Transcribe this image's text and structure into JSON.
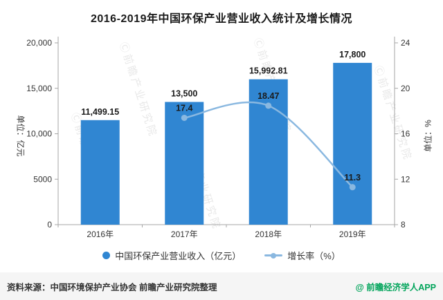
{
  "title": "2016-2019年中国环保产业营业收入统计及增长情况",
  "watermark": "Ⓒ前瞻产业研究院",
  "footer": {
    "source": "资料来源：中国环境保护产业协会 前瞻产业研究院整理",
    "credit": "@ 前瞻经济学人APP"
  },
  "colors": {
    "bar": "#3086d2",
    "line": "#8ab8e0",
    "credit_green": "#00a45a",
    "axis": "#a6a6a6",
    "label_text": "#1a1a1a"
  },
  "chart_data": {
    "type": "bar",
    "combo": "bar+line",
    "categories": [
      "2016年",
      "2017年",
      "2018年",
      "2019年"
    ],
    "series": [
      {
        "name": "中国环保产业营业收入（亿元）",
        "type": "bar",
        "axis": "left",
        "values": [
          11499.15,
          13500,
          15992.81,
          17800
        ],
        "value_labels": [
          "11,499.15",
          "13,500",
          "15,992.81",
          "17,800"
        ]
      },
      {
        "name": "增长率（%）",
        "type": "line",
        "axis": "right",
        "values": [
          null,
          17.4,
          18.47,
          11.3
        ],
        "value_labels": [
          null,
          "17.4",
          "18.47",
          "11.3"
        ]
      }
    ],
    "left_axis": {
      "title": "单位：亿元",
      "min": 0,
      "max": 20000,
      "ticks": [
        0,
        5000,
        10000,
        15000,
        20000
      ],
      "tick_labels": [
        "0",
        "5000",
        "10,000",
        "15,000",
        "20,000"
      ]
    },
    "right_axis": {
      "title": "单位：%",
      "min": 8,
      "max": 24,
      "ticks": [
        8,
        12,
        16,
        20,
        24
      ],
      "tick_labels": [
        "8",
        "12",
        "16",
        "20",
        "24"
      ]
    },
    "grid": false,
    "legend_position": "bottom"
  }
}
